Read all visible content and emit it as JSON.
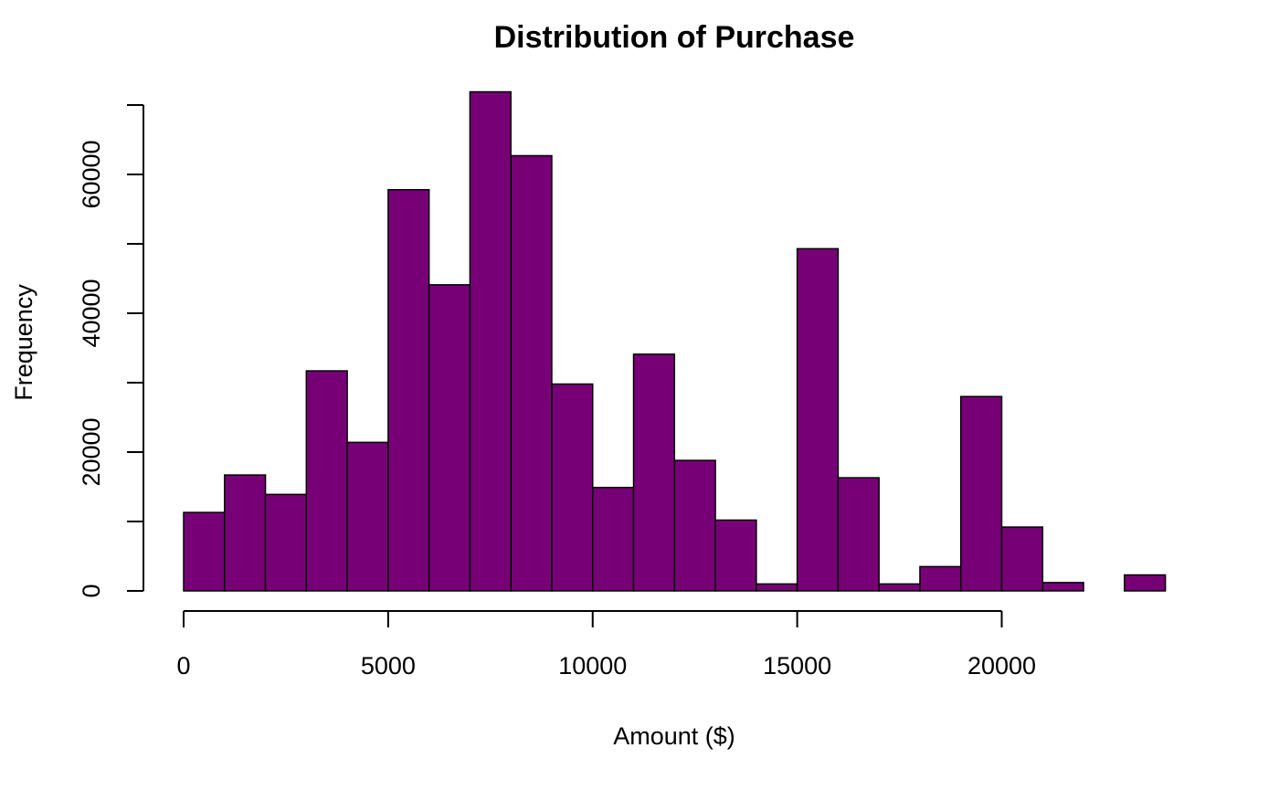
{
  "chart_data": {
    "type": "bar",
    "title": "Distribution of Purchase",
    "xlabel": "Amount ($)",
    "ylabel": "Frequency",
    "bar_color": "#770077",
    "border_color": "#000000",
    "bin_width": 1000,
    "bins": [
      {
        "start": 0,
        "end": 1000,
        "count": 11300
      },
      {
        "start": 1000,
        "end": 2000,
        "count": 16700
      },
      {
        "start": 2000,
        "end": 3000,
        "count": 13900
      },
      {
        "start": 3000,
        "end": 4000,
        "count": 31700
      },
      {
        "start": 4000,
        "end": 5000,
        "count": 21400
      },
      {
        "start": 5000,
        "end": 6000,
        "count": 57800
      },
      {
        "start": 6000,
        "end": 7000,
        "count": 44100
      },
      {
        "start": 7000,
        "end": 8000,
        "count": 71900
      },
      {
        "start": 8000,
        "end": 9000,
        "count": 62700
      },
      {
        "start": 9000,
        "end": 10000,
        "count": 29800
      },
      {
        "start": 10000,
        "end": 11000,
        "count": 14900
      },
      {
        "start": 11000,
        "end": 12000,
        "count": 34100
      },
      {
        "start": 12000,
        "end": 13000,
        "count": 18800
      },
      {
        "start": 13000,
        "end": 14000,
        "count": 10200
      },
      {
        "start": 14000,
        "end": 15000,
        "count": 1000
      },
      {
        "start": 15000,
        "end": 16000,
        "count": 49300
      },
      {
        "start": 16000,
        "end": 17000,
        "count": 16300
      },
      {
        "start": 17000,
        "end": 18000,
        "count": 1000
      },
      {
        "start": 18000,
        "end": 19000,
        "count": 3500
      },
      {
        "start": 19000,
        "end": 20000,
        "count": 28000
      },
      {
        "start": 20000,
        "end": 21000,
        "count": 9200
      },
      {
        "start": 21000,
        "end": 22000,
        "count": 1200
      },
      {
        "start": 22000,
        "end": 23000,
        "count": 0
      },
      {
        "start": 23000,
        "end": 24000,
        "count": 2300
      }
    ],
    "xlim": [
      0,
      24000
    ],
    "ylim": [
      0,
      72000
    ],
    "x_ticks": [
      0,
      5000,
      10000,
      15000,
      20000
    ],
    "x_tick_labels": [
      "0",
      "5000",
      "10000",
      "15000",
      "20000"
    ],
    "y_ticks": [
      0,
      10000,
      20000,
      30000,
      40000,
      50000,
      60000,
      70000
    ],
    "y_tick_labels": [
      "0",
      "",
      "20000",
      "",
      "40000",
      "",
      "60000",
      ""
    ],
    "grid": false,
    "legend": false
  }
}
